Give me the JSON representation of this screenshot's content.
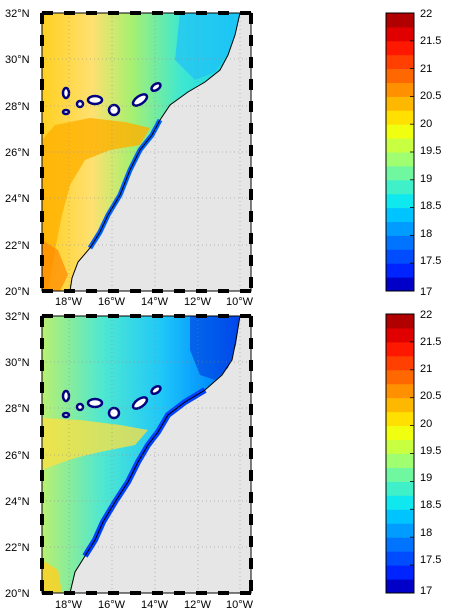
{
  "maps": [
    {
      "name": "top-map",
      "lat_ticks": [
        "32°N",
        "30°N",
        "28°N",
        "26°N",
        "24°N",
        "22°N",
        "20°N"
      ],
      "lon_ticks": [
        "18°W",
        "16°W",
        "14°W",
        "12°W",
        "10°W"
      ],
      "colorbar_ticks": [
        "22",
        "21.5",
        "21",
        "20.5",
        "20",
        "19.5",
        "19",
        "18.5",
        "18",
        "17.5",
        "17"
      ]
    },
    {
      "name": "bottom-map",
      "lat_ticks": [
        "32°N",
        "30°N",
        "28°N",
        "26°N",
        "24°N",
        "22°N",
        "20°N"
      ],
      "lon_ticks": [
        "18°W",
        "16°W",
        "14°W",
        "12°W",
        "10°W"
      ],
      "colorbar_ticks": [
        "22",
        "21.5",
        "21",
        "20.5",
        "20",
        "19.5",
        "19",
        "18.5",
        "18",
        "17.5",
        "17"
      ]
    }
  ],
  "colorbar": {
    "range": [
      17,
      22
    ],
    "colors": [
      "#0000c8",
      "#0024ff",
      "#004cff",
      "#0074ff",
      "#009cff",
      "#00c4ff",
      "#10e8f0",
      "#40f0c8",
      "#70f8a0",
      "#a0ff70",
      "#c8ff40",
      "#f0ff10",
      "#ffe000",
      "#ffb800",
      "#ff9000",
      "#ff6800",
      "#ff4000",
      "#ff1800",
      "#e00000",
      "#b00000"
    ]
  },
  "colors": {
    "land": "#e6e6e6",
    "island": "#ffffff",
    "coast": "#000080"
  }
}
